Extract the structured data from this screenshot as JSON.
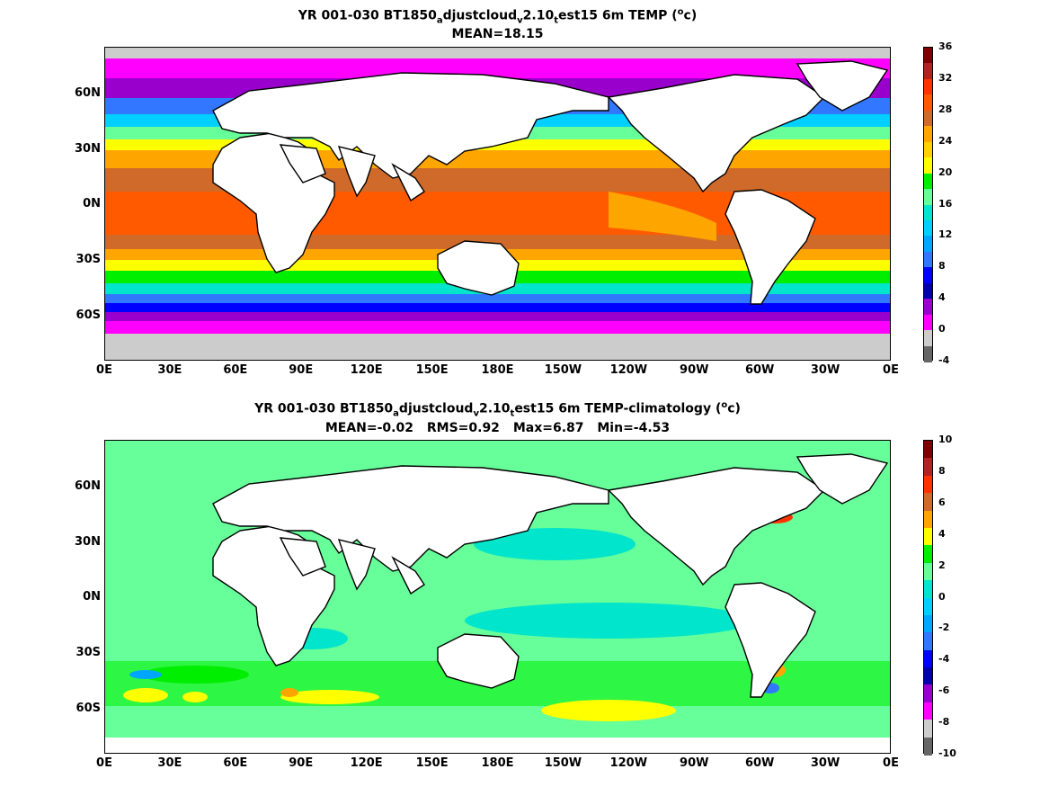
{
  "top_panel": {
    "title_parts": {
      "a": "YR 001-030 BT1850",
      "sub1": "a",
      "b": "djustcloud",
      "sub2": "v",
      "c": "2.10",
      "sub3": "t",
      "d": "est15 6m TEMP (",
      "sup": "o",
      "e": "c)"
    },
    "stats": [
      "MEAN=18.15"
    ],
    "colorbar": {
      "tick_labels": [
        "36",
        "32",
        "28",
        "24",
        "20",
        "16",
        "12",
        "8",
        "4",
        "0",
        "-4"
      ],
      "colors": [
        "#7f0000",
        "#b22222",
        "#ff3300",
        "#ff5a00",
        "#d06a2a",
        "#ffa500",
        "#ffd100",
        "#ffff00",
        "#00ee00",
        "#66ff99",
        "#00e5cc",
        "#00d0ff",
        "#00a6ff",
        "#3277ff",
        "#0000ff",
        "#0000aa",
        "#9a00cc",
        "#ff00ff",
        "#cccccc",
        "#666666"
      ],
      "min": -4,
      "max": 36
    }
  },
  "bottom_panel": {
    "title_parts": {
      "a": "YR 001-030 BT1850",
      "sub1": "a",
      "b": "djustcloud",
      "sub2": "v",
      "c": "2.10",
      "sub3": "t",
      "d": "est15 6m TEMP-climatology (",
      "sup": "o",
      "e": "c)"
    },
    "stats": [
      "MEAN=-0.02",
      "RMS=0.92",
      "Max=6.87",
      "Min=-4.53"
    ],
    "colorbar": {
      "tick_labels": [
        "10",
        "8",
        "6",
        "4",
        "2",
        "0",
        "-2",
        "-4",
        "-6",
        "-8",
        "-10"
      ],
      "colors": [
        "#7f0000",
        "#b22222",
        "#ff3300",
        "#d06a2a",
        "#ffa500",
        "#ffff00",
        "#00ee00",
        "#66ff99",
        "#00e5cc",
        "#00d0ff",
        "#00a6ff",
        "#3277ff",
        "#0000ff",
        "#0000aa",
        "#9a00cc",
        "#ff00ff",
        "#cccccc",
        "#666666"
      ],
      "min": -10,
      "max": 10
    }
  },
  "axes": {
    "lat_labels": [
      "60N",
      "30N",
      "0N",
      "30S",
      "60S"
    ],
    "lon_labels": [
      "0E",
      "30E",
      "60E",
      "90E",
      "120E",
      "150E",
      "180E",
      "150W",
      "120W",
      "90W",
      "60W",
      "30W",
      "0E"
    ]
  },
  "colors": {
    "land": "#ffffff",
    "coast": "#000000",
    "ice": "#cccccc"
  }
}
